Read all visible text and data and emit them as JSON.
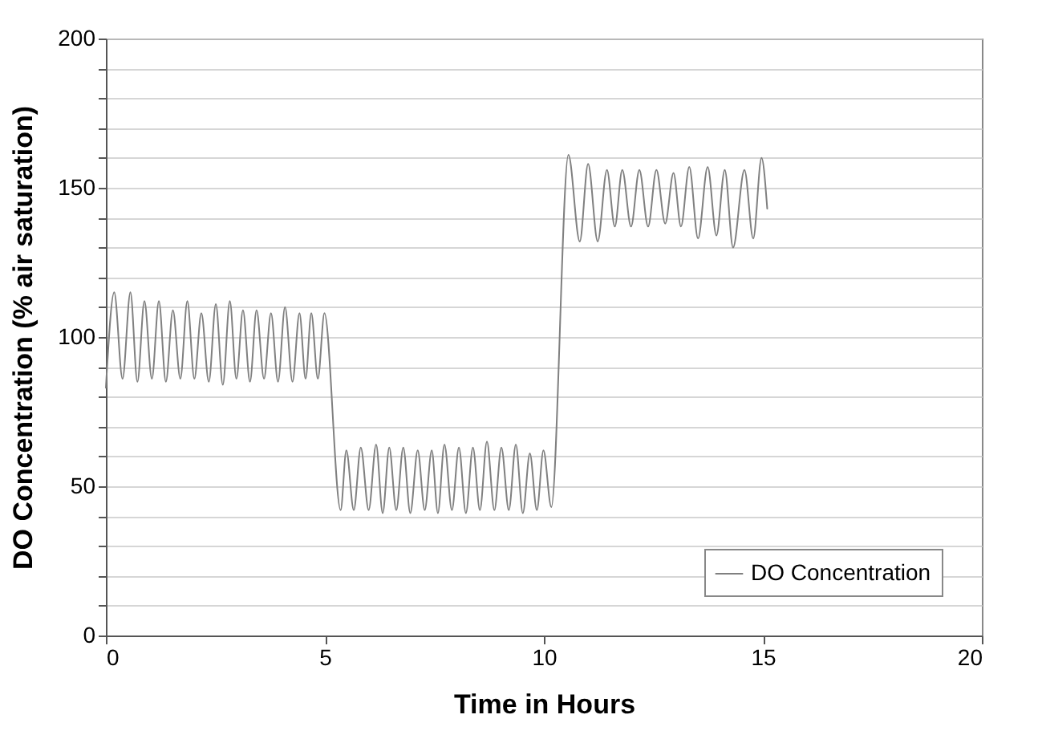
{
  "chart_data": {
    "type": "line",
    "xlabel": "Time in Hours",
    "ylabel": "DO Concentration (% air saturation)",
    "xlim": [
      0,
      20
    ],
    "xticks": [
      0,
      5,
      10,
      15,
      20
    ],
    "ylim": [
      0,
      200
    ],
    "yticks": [
      0,
      {
        "value": 10,
        "label": null
      },
      {
        "value": 20,
        "label": null
      },
      {
        "value": 30,
        "label": null
      },
      {
        "value": 40,
        "label": null
      },
      50,
      {
        "value": 60,
        "label": null
      },
      {
        "value": 70,
        "label": null
      },
      {
        "value": 80,
        "label": null
      },
      {
        "value": 90,
        "label": null
      },
      100,
      {
        "value": 110,
        "label": null
      },
      {
        "value": 120,
        "label": null
      },
      {
        "value": 130,
        "label": null
      },
      {
        "value": 140,
        "label": null
      },
      150,
      {
        "value": 160,
        "label": null
      },
      {
        "value": 170,
        "label": null
      },
      {
        "value": 180,
        "label": null
      },
      {
        "value": 190,
        "label": null
      },
      200
    ],
    "grid": "y",
    "legend": "bottom right",
    "marker": "none",
    "line_style": "solid",
    "x": [
      0,
      0.19,
      0.38,
      0.56,
      0.72,
      0.88,
      1.05,
      1.21,
      1.37,
      1.53,
      1.7,
      1.86,
      2.02,
      2.18,
      2.35,
      2.51,
      2.67,
      2.83,
      2.98,
      3.13,
      3.29,
      3.44,
      3.61,
      3.77,
      3.93,
      4.09,
      4.26,
      4.42,
      4.56,
      4.69,
      4.84,
      4.99,
      5.36,
      5.49,
      5.66,
      5.82,
      6.0,
      6.17,
      6.32,
      6.47,
      6.63,
      6.79,
      6.95,
      7.12,
      7.28,
      7.44,
      7.58,
      7.73,
      7.9,
      8.06,
      8.22,
      8.38,
      8.54,
      8.7,
      8.87,
      9.03,
      9.2,
      9.36,
      9.52,
      9.68,
      9.84,
      9.99,
      10.17,
      10.56,
      10.82,
      11.01,
      11.23,
      11.44,
      11.62,
      11.79,
      11.99,
      12.18,
      12.38,
      12.57,
      12.77,
      12.96,
      13.13,
      13.32,
      13.52,
      13.74,
      13.94,
      14.13,
      14.32,
      14.58,
      14.78,
      14.97,
      15.1
    ],
    "series": [
      {
        "name": "DO Concentration",
        "color": "#808080",
        "values": [
          83,
          115,
          86,
          115,
          85,
          112,
          86,
          112,
          85,
          109,
          86,
          112,
          86,
          108,
          85,
          111,
          84,
          112,
          86,
          109,
          85,
          109,
          86,
          108,
          85,
          110,
          85,
          108,
          86,
          108,
          86,
          108,
          42,
          62,
          42,
          63,
          42,
          64,
          41,
          63,
          42,
          63,
          41,
          62,
          42,
          62,
          41,
          64,
          42,
          63,
          41,
          63,
          42,
          65,
          42,
          63,
          42,
          64,
          41,
          61,
          42,
          62,
          43,
          161,
          132,
          158,
          132,
          156,
          137,
          156,
          137,
          156,
          137,
          156,
          138,
          155,
          137,
          157,
          133,
          157,
          134,
          156,
          130,
          156,
          133,
          160,
          143
        ]
      }
    ]
  }
}
